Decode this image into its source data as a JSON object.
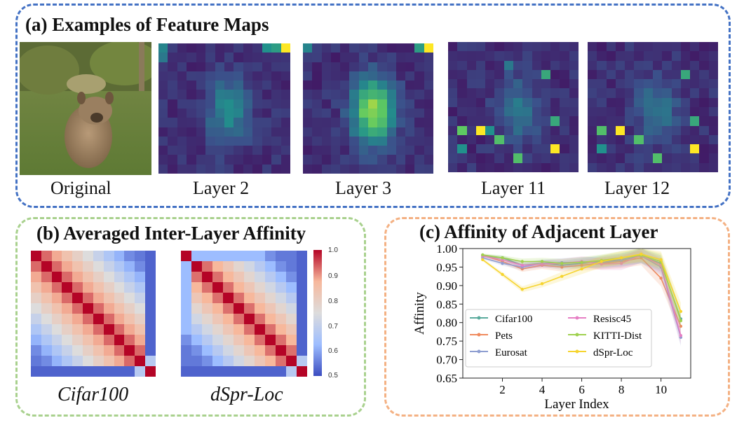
{
  "panel_a": {
    "title": "(a) Examples of Feature Maps",
    "maps": [
      {
        "label": "Original"
      },
      {
        "label": "Layer 2"
      },
      {
        "label": "Layer 3"
      },
      {
        "label": "Layer 11"
      },
      {
        "label": "Layer 12"
      }
    ]
  },
  "panel_b": {
    "title": "(b) Averaged Inter-Layer Affinity",
    "heatmaps": [
      {
        "label": "Cifar100"
      },
      {
        "label": "dSpr-Loc"
      }
    ],
    "colorbar_ticks": [
      "1.0",
      "0.9",
      "0.8",
      "0.7",
      "0.6",
      "0.5"
    ]
  },
  "panel_c": {
    "title": "(c) Affinity of Adjacent Layer"
  },
  "colors": {
    "panel_a_border": "#4472c4",
    "panel_b_border": "#a9d18e",
    "panel_c_border": "#f4b183"
  },
  "chart_data": {
    "type": "line",
    "title": "(c) Affinity of Adjacent Layer",
    "xlabel": "Layer Index",
    "ylabel": "Affinity",
    "x": [
      1,
      2,
      3,
      4,
      5,
      6,
      7,
      8,
      9,
      10,
      11
    ],
    "xticks": [
      "2",
      "4",
      "6",
      "8",
      "10"
    ],
    "yticks": [
      "1.00",
      "0.95",
      "0.90",
      "0.85",
      "0.80",
      "0.75",
      "0.70",
      "0.65"
    ],
    "ylim": [
      0.65,
      1.0
    ],
    "xlim": [
      0,
      11.5
    ],
    "grid": false,
    "legend_position": "lower-left",
    "series": [
      {
        "name": "Cifar100",
        "color": "#5aab9d",
        "values": [
          0.98,
          0.975,
          0.955,
          0.96,
          0.955,
          0.96,
          0.965,
          0.97,
          0.98,
          0.96,
          0.81
        ]
      },
      {
        "name": "Pets",
        "color": "#f08a5d",
        "values": [
          0.982,
          0.965,
          0.945,
          0.955,
          0.95,
          0.955,
          0.96,
          0.965,
          0.975,
          0.92,
          0.79
        ]
      },
      {
        "name": "Eurosat",
        "color": "#8e9ed1",
        "values": [
          0.975,
          0.96,
          0.95,
          0.96,
          0.962,
          0.963,
          0.962,
          0.968,
          0.98,
          0.95,
          0.76
        ]
      },
      {
        "name": "Resisc45",
        "color": "#e67fc4",
        "values": [
          0.98,
          0.97,
          0.955,
          0.958,
          0.96,
          0.965,
          0.958,
          0.96,
          0.982,
          0.955,
          0.765
        ]
      },
      {
        "name": "KITTI-Dist",
        "color": "#9fd14f",
        "values": [
          0.983,
          0.975,
          0.965,
          0.965,
          0.96,
          0.963,
          0.968,
          0.975,
          0.982,
          0.965,
          0.805
        ]
      },
      {
        "name": "dSpr-Loc",
        "color": "#f6d42f",
        "values": [
          0.97,
          0.93,
          0.89,
          0.905,
          0.925,
          0.945,
          0.965,
          0.975,
          0.985,
          0.97,
          0.83
        ]
      }
    ]
  }
}
